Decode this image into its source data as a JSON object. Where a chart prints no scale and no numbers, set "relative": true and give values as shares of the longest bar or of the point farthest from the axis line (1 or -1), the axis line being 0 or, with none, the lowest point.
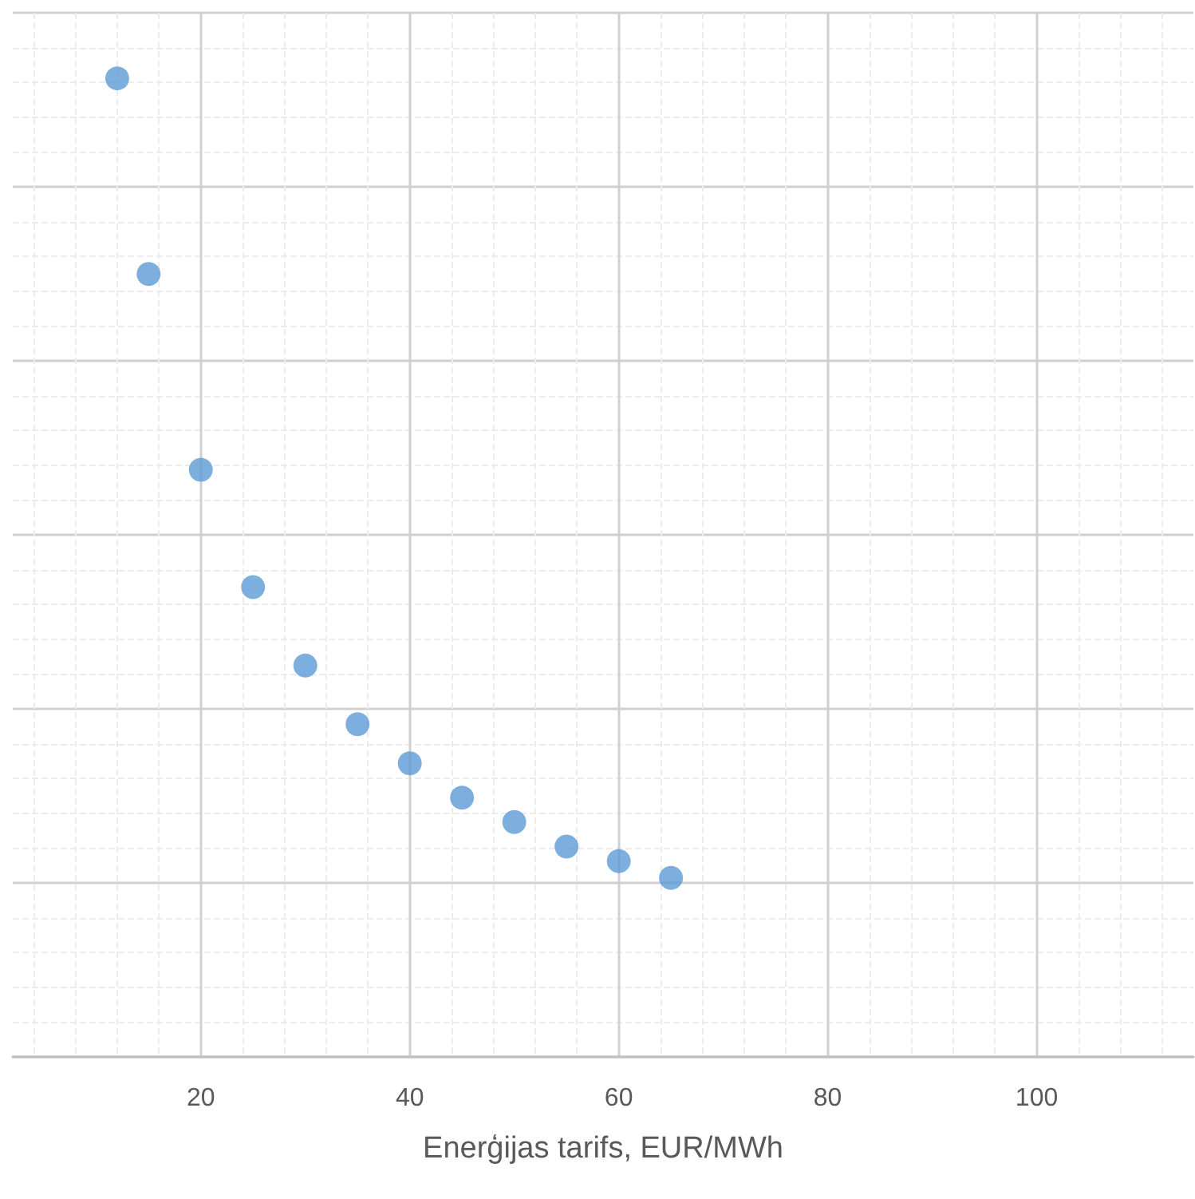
{
  "chart_data": {
    "type": "scatter",
    "xlabel": "Enerģijas tarifs, EUR/MWh",
    "x": [
      12,
      15,
      20,
      25,
      30,
      35,
      40,
      45,
      50,
      55,
      60,
      65
    ],
    "series": [
      {
        "color": "#5b9bd5",
        "values": [
          1,
          0.8,
          0.6,
          0.48,
          0.4,
          0.34,
          0.3,
          0.265,
          0.24,
          0.215,
          0.2,
          0.183
        ]
      }
    ],
    "relative": true,
    "xlim": [
      2,
      115
    ],
    "xticks": [
      20,
      40,
      60,
      80,
      100
    ],
    "grid": true,
    "tick_labels": "x",
    "marker": "circle"
  }
}
